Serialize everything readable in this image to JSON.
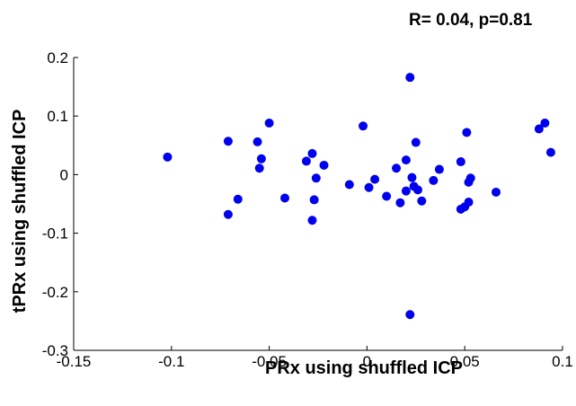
{
  "chart_data": {
    "type": "scatter",
    "annotation": "R= 0.04, p=0.81",
    "xlabel": "PRx using shuffled ICP",
    "ylabel": "tPRx using shuffled ICP",
    "xlim": [
      -0.15,
      0.1
    ],
    "ylim": [
      -0.3,
      0.2
    ],
    "xticks": [
      -0.15,
      -0.1,
      -0.05,
      0,
      0.05,
      0.1
    ],
    "xtick_labels": [
      "-0.15",
      "-0.1",
      "-0.05",
      "0",
      "0.05",
      "0.1"
    ],
    "yticks": [
      -0.3,
      -0.2,
      -0.1,
      0,
      0.1,
      0.2
    ],
    "ytick_labels": [
      "-0.3",
      "-0.2",
      "-0.1",
      "0",
      "0.1",
      "0.2"
    ],
    "grid": false,
    "color": "#0000ee",
    "series": [
      {
        "points": [
          [
            -0.102,
            0.03
          ],
          [
            -0.071,
            0.057
          ],
          [
            -0.071,
            -0.068
          ],
          [
            -0.066,
            -0.042
          ],
          [
            -0.056,
            0.056
          ],
          [
            -0.055,
            0.011
          ],
          [
            -0.054,
            0.027
          ],
          [
            -0.05,
            0.088
          ],
          [
            -0.042,
            -0.04
          ],
          [
            -0.031,
            0.023
          ],
          [
            -0.028,
            0.036
          ],
          [
            -0.028,
            -0.078
          ],
          [
            -0.027,
            -0.043
          ],
          [
            -0.026,
            -0.006
          ],
          [
            -0.022,
            0.016
          ],
          [
            -0.009,
            -0.017
          ],
          [
            -0.002,
            0.083
          ],
          [
            0.001,
            -0.022
          ],
          [
            0.004,
            -0.008
          ],
          [
            0.01,
            -0.037
          ],
          [
            0.015,
            0.011
          ],
          [
            0.017,
            -0.048
          ],
          [
            0.02,
            0.025
          ],
          [
            0.02,
            -0.028
          ],
          [
            0.022,
            0.166
          ],
          [
            0.022,
            -0.239
          ],
          [
            0.023,
            -0.005
          ],
          [
            0.024,
            -0.02
          ],
          [
            0.025,
            0.055
          ],
          [
            0.026,
            -0.026
          ],
          [
            0.028,
            -0.045
          ],
          [
            0.034,
            -0.01
          ],
          [
            0.037,
            0.009
          ],
          [
            0.048,
            0.022
          ],
          [
            0.048,
            -0.059
          ],
          [
            0.05,
            -0.055
          ],
          [
            0.051,
            0.072
          ],
          [
            0.052,
            -0.047
          ],
          [
            0.052,
            -0.013
          ],
          [
            0.053,
            -0.006
          ],
          [
            0.066,
            -0.03
          ],
          [
            0.088,
            0.078
          ],
          [
            0.091,
            0.088
          ],
          [
            0.094,
            0.038
          ]
        ]
      }
    ]
  }
}
